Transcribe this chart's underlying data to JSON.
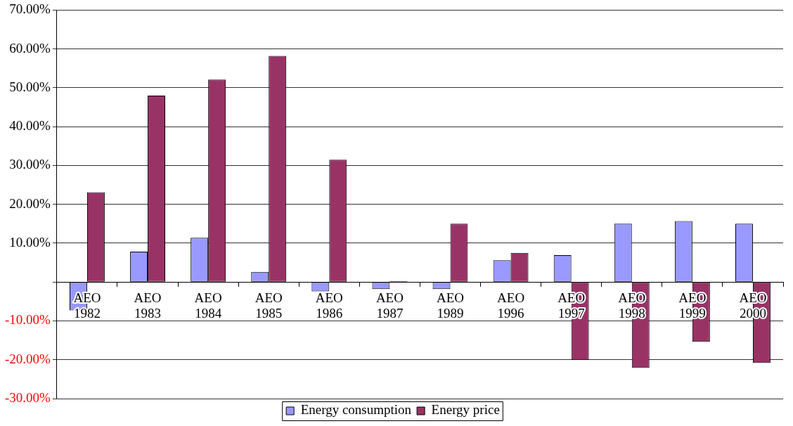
{
  "chart_data": {
    "type": "bar",
    "categories": [
      "AEO 1982",
      "AEO 1983",
      "AEO 1984",
      "AEO 1985",
      "AEO 1986",
      "AEO 1987",
      "AEO 1989",
      "AEO 1996",
      "AEO 1997",
      "AEO 1998",
      "AEO 1999",
      "AEO 2000"
    ],
    "series": [
      {
        "name": "Energy consumption",
        "color": "#9999ff",
        "values": [
          -7.3,
          7.8,
          11.4,
          2.6,
          -2.4,
          -1.8,
          -1.8,
          5.6,
          6.9,
          15.0,
          15.7,
          15.0
        ]
      },
      {
        "name": "Energy price",
        "color": "#993366",
        "values": [
          23.1,
          48.0,
          52.1,
          58.2,
          31.5,
          0.2,
          15.0,
          7.5,
          -20.1,
          -22.1,
          -15.4,
          -20.8
        ]
      }
    ],
    "ylim": [
      -30,
      70
    ],
    "yticks": [
      {
        "value": -30,
        "label": "-30.00%"
      },
      {
        "value": -20,
        "label": "-20.00%"
      },
      {
        "value": -10,
        "label": "-10.00%"
      },
      {
        "value": 0,
        "label": null
      },
      {
        "value": 10,
        "label": "10.00%"
      },
      {
        "value": 20,
        "label": "20.00%"
      },
      {
        "value": 30,
        "label": "30.00%"
      },
      {
        "value": 40,
        "label": "40.00%"
      },
      {
        "value": 50,
        "label": "50.00%"
      },
      {
        "value": 60,
        "label": "60.00%"
      },
      {
        "value": 70,
        "label": "70.00%"
      }
    ],
    "grid": "y",
    "legend": "bottom"
  }
}
